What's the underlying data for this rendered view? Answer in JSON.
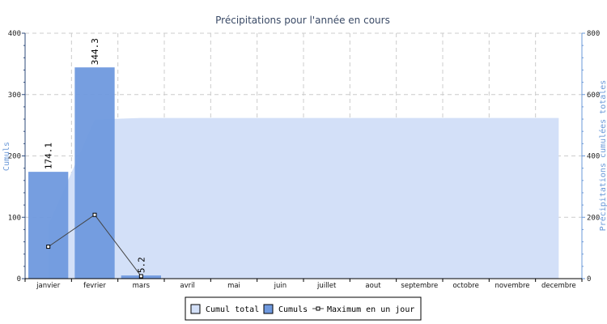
{
  "colors": {
    "cumul_total": "#d3e0f8",
    "cumuls": "#6f99de",
    "axis_left": "#2e4a7a",
    "axis_title": "#6a98d8",
    "title": "#3a4a66",
    "grid": "#cccccc",
    "line": "#444444"
  },
  "chart_data": {
    "type": "bar",
    "title": "Précipitations pour l'année en cours",
    "ylabel": "Cumuls",
    "y2label": "Précipitations cumulées totales",
    "categories": [
      "janvier",
      "fevrier",
      "mars",
      "avril",
      "mai",
      "juin",
      "juillet",
      "aout",
      "septembre",
      "octobre",
      "novembre",
      "decembre"
    ],
    "ylim": [
      0,
      400
    ],
    "y2lim": [
      0,
      800
    ],
    "yticks": [
      "0",
      "100",
      "200",
      "300",
      "400"
    ],
    "y2ticks": [
      "0",
      "200",
      "400",
      "600",
      "800"
    ],
    "grid": true,
    "legend_position": "bottom-center",
    "series": [
      {
        "name": "Cumul total",
        "type": "area",
        "axis": "right",
        "values": [
          174.1,
          518.4,
          523.6,
          523.6,
          523.6,
          523.6,
          523.6,
          523.6,
          523.6,
          523.6,
          523.6,
          523.6
        ]
      },
      {
        "name": "Cumuls",
        "type": "bar",
        "axis": "left",
        "values": [
          174.1,
          344.3,
          5.2,
          null,
          null,
          null,
          null,
          null,
          null,
          null,
          null,
          null
        ],
        "data_labels": [
          "174.1",
          "344.3",
          "5.2",
          "",
          "",
          "",
          "",
          "",
          "",
          "",
          "",
          ""
        ]
      },
      {
        "name": "Maximum en un jour",
        "type": "line",
        "axis": "left",
        "values": [
          52,
          104,
          4,
          null,
          null,
          null,
          null,
          null,
          null,
          null,
          null,
          null
        ]
      }
    ]
  }
}
